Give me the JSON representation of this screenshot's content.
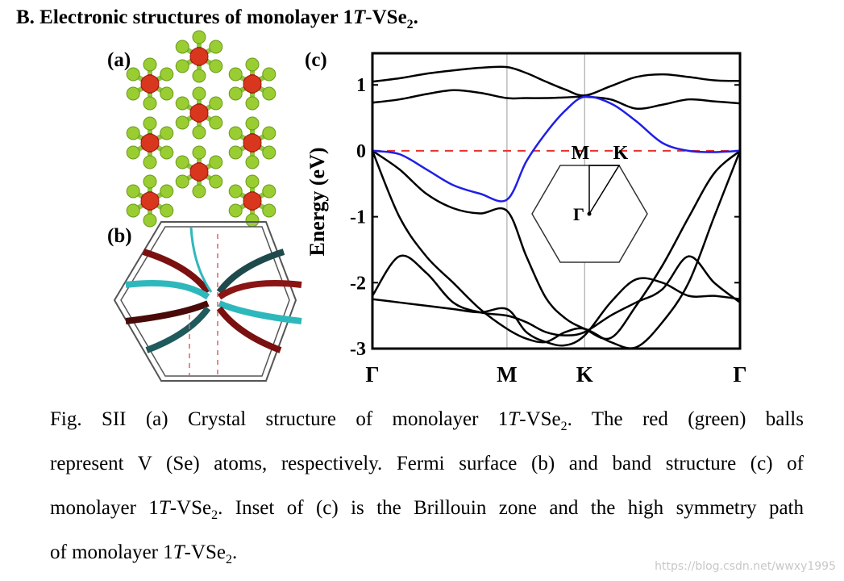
{
  "heading": [
    {
      "t": "B.  Electronic structures of monolayer 1"
    },
    {
      "i": "T"
    },
    {
      "t": "-VSe"
    },
    {
      "sub": "2"
    },
    {
      "t": "."
    }
  ],
  "panels": {
    "a": "(a)",
    "b": "(b)",
    "c": "(c)"
  },
  "chart_data": {
    "type": "line",
    "ylabel": "Energy (eV)",
    "xlim": [
      0,
      2.732
    ],
    "ylim": [
      -3,
      1.48
    ],
    "xticks": [
      {
        "value": 0,
        "label": "Γ"
      },
      {
        "value": 1.0,
        "label": "M"
      },
      {
        "value": 1.577,
        "label": "K"
      },
      {
        "value": 2.732,
        "label": "Γ"
      }
    ],
    "yticks": [
      -3,
      -2,
      -1,
      0,
      1
    ],
    "xgrid": true,
    "fermi_level": 0,
    "fermi_color": "#e8302a",
    "x": [
      0,
      0.2,
      0.4,
      0.6,
      0.8,
      1.0,
      1.144,
      1.289,
      1.433,
      1.577,
      1.77,
      1.96,
      2.155,
      2.35,
      2.54,
      2.732
    ],
    "series": [
      {
        "color": "#000000",
        "values": [
          1.05,
          1.1,
          1.17,
          1.22,
          1.26,
          1.27,
          1.18,
          1.05,
          0.93,
          0.84,
          0.98,
          1.12,
          1.16,
          1.12,
          1.07,
          1.06
        ]
      },
      {
        "color": "#000000",
        "values": [
          0.73,
          0.78,
          0.86,
          0.92,
          0.88,
          0.8,
          0.8,
          0.8,
          0.81,
          0.82,
          0.78,
          0.64,
          0.7,
          0.78,
          0.75,
          0.72
        ]
      },
      {
        "color": "#000000",
        "values": [
          0,
          -0.28,
          -0.65,
          -0.87,
          -0.95,
          -0.91,
          -1.6,
          -2.23,
          -2.54,
          -2.7,
          -2.84,
          -2.35,
          -1.74,
          -1.01,
          -0.34,
          0
        ]
      },
      {
        "color": "#000000",
        "values": [
          0,
          -1.0,
          -1.6,
          -2.0,
          -2.4,
          -2.7,
          -2.85,
          -2.9,
          -2.75,
          -2.7,
          -2.9,
          -2.98,
          -2.6,
          -2.0,
          -1.0,
          0
        ]
      },
      {
        "color": "#000000",
        "values": [
          -2.2,
          -1.6,
          -1.85,
          -2.3,
          -2.45,
          -2.5,
          -2.6,
          -2.75,
          -2.8,
          -2.75,
          -2.5,
          -2.3,
          -2.1,
          -1.6,
          -2.0,
          -2.3
        ]
      },
      {
        "color": "#000000",
        "values": [
          -2.25,
          -2.3,
          -2.35,
          -2.4,
          -2.45,
          -2.4,
          -2.75,
          -2.9,
          -2.95,
          -2.8,
          -2.3,
          -1.95,
          -2.0,
          -2.2,
          -2.2,
          -2.25
        ]
      },
      {
        "color": "#1f1fe6",
        "values": [
          0,
          -0.05,
          -0.28,
          -0.52,
          -0.65,
          -0.74,
          -0.16,
          0.27,
          0.61,
          0.82,
          0.72,
          0.45,
          0.12,
          0,
          -0.02,
          0
        ]
      }
    ],
    "inset_labels": {
      "m": "M",
      "k": "K",
      "g": "Γ"
    }
  },
  "caption": {
    "lines": [
      [
        {
          "t": "Fig. SII (a) Crystal structure of monolayer 1"
        },
        {
          "i": "T"
        },
        {
          "t": "-VSe"
        },
        {
          "sub": "2"
        },
        {
          "t": ". The red (green) balls"
        }
      ],
      [
        {
          "t": "represent V (Se) atoms, respectively. Fermi surface (b) and band structure (c) of"
        }
      ],
      [
        {
          "t": "monolayer 1"
        },
        {
          "i": "T"
        },
        {
          "t": "-VSe"
        },
        {
          "sub": "2"
        },
        {
          "t": ". Inset of (c) is the Brillouin zone and the high symmetry path"
        }
      ],
      [
        {
          "t": "of monolayer 1"
        },
        {
          "i": "T"
        },
        {
          "t": "-VSe"
        },
        {
          "sub": "2"
        },
        {
          "t": "."
        }
      ]
    ]
  },
  "watermark": "https://blog.csdn.net/wwxy1995"
}
